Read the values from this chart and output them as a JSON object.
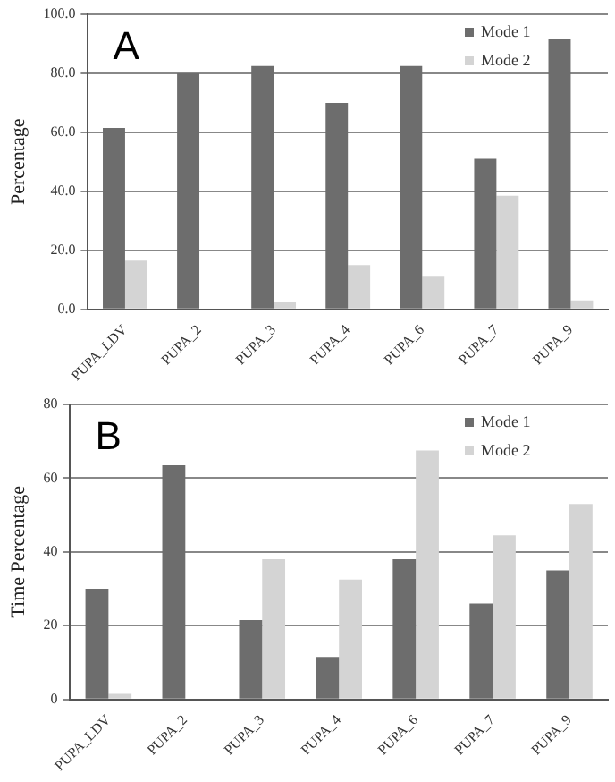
{
  "chart_data": [
    {
      "type": "bar",
      "ylabel": "Percentage",
      "annotations": [
        "A"
      ],
      "categories": [
        "PUPA_LDV",
        "PUPA_2",
        "PUPA_3",
        "PUPA_4",
        "PUPA_6",
        "PUPA_7",
        "PUPA_9"
      ],
      "series": [
        {
          "name": "Mode 1",
          "color": "#6d6d6d",
          "values": [
            61.5,
            80,
            82.5,
            70,
            82.5,
            51,
            91.5
          ]
        },
        {
          "name": "Mode 2",
          "color": "#d4d4d4",
          "values": [
            16.5,
            0,
            2.5,
            15,
            11,
            38.5,
            3
          ]
        }
      ],
      "ylim": [
        0,
        100
      ],
      "yticks": [
        {
          "value": 0,
          "label": "0.0"
        },
        {
          "value": 20,
          "label": "20.0"
        },
        {
          "value": 40,
          "label": "40.0"
        },
        {
          "value": 60,
          "label": "60.0"
        },
        {
          "value": 80,
          "label": "80.0"
        },
        {
          "value": 100,
          "label": "100.0"
        }
      ],
      "grid": "y",
      "legend": "top right"
    },
    {
      "type": "bar",
      "ylabel": "Time Percentage",
      "annotations": [
        "B"
      ],
      "categories": [
        "PUPA_LDV",
        "PUPA_2",
        "PUPA_3",
        "PUPA_4",
        "PUPA_6",
        "PUPA_7",
        "PUPA_9"
      ],
      "series": [
        {
          "name": "Mode 1",
          "color": "#6d6d6d",
          "values": [
            30,
            63.5,
            21.5,
            11.5,
            38,
            26,
            35
          ]
        },
        {
          "name": "Mode 2",
          "color": "#d4d4d4",
          "values": [
            1.5,
            0,
            38,
            32.5,
            67.5,
            44.5,
            53
          ]
        }
      ],
      "ylim": [
        0,
        80
      ],
      "yticks": [
        0,
        20,
        40,
        60,
        80
      ],
      "grid": "y",
      "legend": "top right"
    }
  ]
}
